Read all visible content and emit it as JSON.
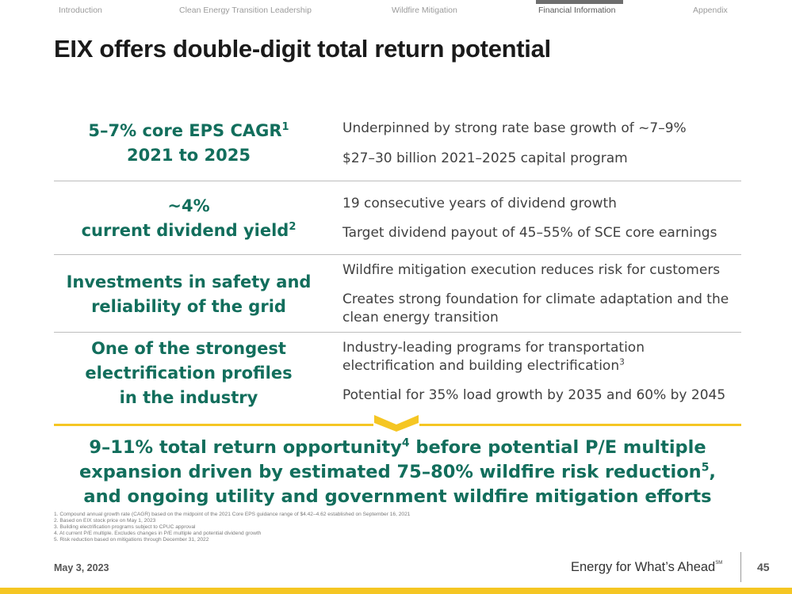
{
  "nav": {
    "items": [
      {
        "label": "Introduction",
        "active": false
      },
      {
        "label": "Clean Energy Transition Leadership",
        "active": false
      },
      {
        "label": "Wildfire Mitigation",
        "active": false
      },
      {
        "label": "Financial Information",
        "active": true
      },
      {
        "label": "Appendix",
        "active": false
      }
    ]
  },
  "title": "EIX offers double-digit total return potential",
  "rows": [
    {
      "left": [
        "5–7% core EPS CAGR",
        "2021 to 2025"
      ],
      "left_sup": "1",
      "right": [
        "Underpinned by strong rate base growth of ~7–9%",
        "$27–30 billion 2021–2025 capital program"
      ]
    },
    {
      "left": [
        "~4%",
        "current dividend yield"
      ],
      "left_sup": "2",
      "right": [
        "19 consecutive years of dividend growth",
        "Target dividend payout of 45–55% of SCE core earnings"
      ]
    },
    {
      "left": [
        "Investments in safety and",
        "reliability of the grid"
      ],
      "right": [
        "Wildfire mitigation execution reduces risk for customers",
        "Creates strong foundation for climate adaptation and the clean energy transition"
      ]
    },
    {
      "left": [
        "One of the strongest",
        "electrification profiles",
        "in the industry"
      ],
      "right": [
        "Industry-leading programs for transportation electrification and building electrification",
        "Potential for 35% load growth by 2035 and 60% by 2045"
      ],
      "right_sup": "3"
    }
  ],
  "summary": {
    "line1_a": "9–11% total return opportunity",
    "line1_sup": "4",
    "line1_b": " before potential P/E multiple",
    "line2_a": "expansion driven by estimated 75–80% wildfire risk reduction",
    "line2_sup": "5",
    "line2_b": ",",
    "line3": "and ongoing utility and government wildfire mitigation efforts"
  },
  "footnotes": [
    "1.  Compound annual growth rate (CAGR) based on the midpoint of the 2021 Core EPS guidance range of $4.42–4.62 established on September 16, 2021",
    "2.  Based on EIX stock price on May 1, 2023",
    "3.  Building electrification programs subject to CPUC approval",
    "4.  At current P/E multiple. Excludes changes in P/E multiple and potential dividend growth",
    "5.  Risk reduction based on mitigations through December 31, 2022"
  ],
  "footer": {
    "date": "May 3, 2023",
    "tagline": "Energy for What’s Ahead",
    "tagline_mark": "SM",
    "page_number": "45"
  },
  "colors": {
    "brand_green": "#126e5c",
    "accent_gold": "#f5c623",
    "nav_gray": "#9b9b9b"
  }
}
